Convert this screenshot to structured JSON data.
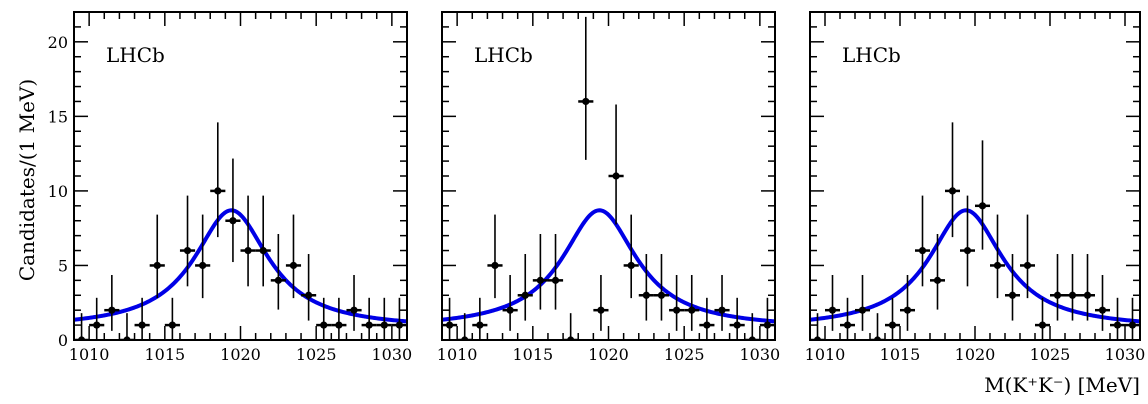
{
  "chart_data": {
    "type": "scatter",
    "ylabel": "Candidates/(1 MeV)",
    "xlabel": "M(K⁺K⁻) [MeV]",
    "xlim": [
      1009,
      1031
    ],
    "ylim": [
      0,
      22
    ],
    "x_ticks": [
      1010,
      1015,
      1020,
      1025,
      1030
    ],
    "y_ticks": [
      0,
      5,
      10,
      15,
      20
    ],
    "grid": false,
    "fit_curve": {
      "color": "#0000e6",
      "shape": "peak",
      "peak_x": 1019.4,
      "peak_y": 8.7,
      "width": 3.0,
      "baseline": 0.75
    },
    "panels": [
      {
        "label": "LHCb",
        "points": [
          {
            "x": 1009.5,
            "y": 0
          },
          {
            "x": 1010.5,
            "y": 1
          },
          {
            "x": 1011.5,
            "y": 2
          },
          {
            "x": 1012.5,
            "y": 0
          },
          {
            "x": 1013.5,
            "y": 1
          },
          {
            "x": 1014.5,
            "y": 5
          },
          {
            "x": 1015.5,
            "y": 1
          },
          {
            "x": 1016.5,
            "y": 6
          },
          {
            "x": 1017.5,
            "y": 5
          },
          {
            "x": 1018.5,
            "y": 10
          },
          {
            "x": 1019.5,
            "y": 8
          },
          {
            "x": 1020.5,
            "y": 6
          },
          {
            "x": 1021.5,
            "y": 6
          },
          {
            "x": 1022.5,
            "y": 4
          },
          {
            "x": 1023.5,
            "y": 5
          },
          {
            "x": 1024.5,
            "y": 3
          },
          {
            "x": 1025.5,
            "y": 1
          },
          {
            "x": 1026.5,
            "y": 1
          },
          {
            "x": 1027.5,
            "y": 2
          },
          {
            "x": 1028.5,
            "y": 1
          },
          {
            "x": 1029.5,
            "y": 1
          },
          {
            "x": 1030.5,
            "y": 1
          }
        ]
      },
      {
        "label": "LHCb",
        "points": [
          {
            "x": 1009.5,
            "y": 1
          },
          {
            "x": 1010.5,
            "y": 0
          },
          {
            "x": 1011.5,
            "y": 1
          },
          {
            "x": 1012.5,
            "y": 5
          },
          {
            "x": 1013.5,
            "y": 2
          },
          {
            "x": 1014.5,
            "y": 3
          },
          {
            "x": 1015.5,
            "y": 4
          },
          {
            "x": 1016.5,
            "y": 4
          },
          {
            "x": 1017.5,
            "y": 0
          },
          {
            "x": 1018.5,
            "y": 16
          },
          {
            "x": 1019.5,
            "y": 2
          },
          {
            "x": 1020.5,
            "y": 11
          },
          {
            "x": 1021.5,
            "y": 5
          },
          {
            "x": 1022.5,
            "y": 3
          },
          {
            "x": 1023.5,
            "y": 3
          },
          {
            "x": 1024.5,
            "y": 2
          },
          {
            "x": 1025.5,
            "y": 2
          },
          {
            "x": 1026.5,
            "y": 1
          },
          {
            "x": 1027.5,
            "y": 2
          },
          {
            "x": 1028.5,
            "y": 1
          },
          {
            "x": 1029.5,
            "y": 0
          },
          {
            "x": 1030.5,
            "y": 1
          }
        ]
      },
      {
        "label": "LHCb",
        "points": [
          {
            "x": 1009.5,
            "y": 0
          },
          {
            "x": 1010.5,
            "y": 2
          },
          {
            "x": 1011.5,
            "y": 1
          },
          {
            "x": 1012.5,
            "y": 2
          },
          {
            "x": 1013.5,
            "y": 0
          },
          {
            "x": 1014.5,
            "y": 1
          },
          {
            "x": 1015.5,
            "y": 2
          },
          {
            "x": 1016.5,
            "y": 6
          },
          {
            "x": 1017.5,
            "y": 4
          },
          {
            "x": 1018.5,
            "y": 10
          },
          {
            "x": 1019.5,
            "y": 6
          },
          {
            "x": 1020.5,
            "y": 9
          },
          {
            "x": 1021.5,
            "y": 5
          },
          {
            "x": 1022.5,
            "y": 3
          },
          {
            "x": 1023.5,
            "y": 5
          },
          {
            "x": 1024.5,
            "y": 1
          },
          {
            "x": 1025.5,
            "y": 3
          },
          {
            "x": 1026.5,
            "y": 3
          },
          {
            "x": 1027.5,
            "y": 3
          },
          {
            "x": 1028.5,
            "y": 2
          },
          {
            "x": 1029.5,
            "y": 1
          },
          {
            "x": 1030.5,
            "y": 1
          }
        ]
      }
    ]
  }
}
